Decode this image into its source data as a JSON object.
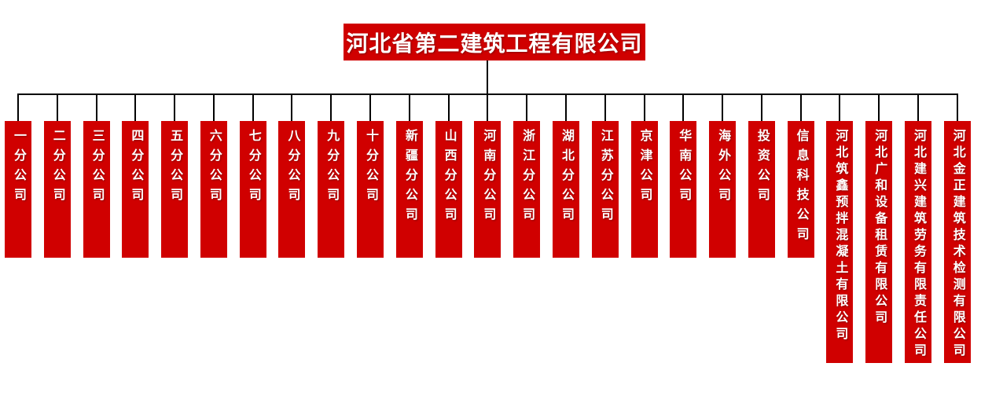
{
  "org_chart": {
    "title": "河北省第二建筑工程有限公司",
    "colors": {
      "node_red": "#d00000",
      "label_white": "#ffffff",
      "connector_black": "#000000",
      "page_background": "#ffffff"
    },
    "companies": [
      {
        "label": "一分公司",
        "tall": false
      },
      {
        "label": "二分公司",
        "tall": false
      },
      {
        "label": "三分公司",
        "tall": false
      },
      {
        "label": "四分公司",
        "tall": false
      },
      {
        "label": "五分公司",
        "tall": false
      },
      {
        "label": "六分公司",
        "tall": false
      },
      {
        "label": "七分公司",
        "tall": false
      },
      {
        "label": "八分公司",
        "tall": false
      },
      {
        "label": "九分公司",
        "tall": false
      },
      {
        "label": "十分公司",
        "tall": false
      },
      {
        "label": "新疆分公司",
        "tall": false
      },
      {
        "label": "山西分公司",
        "tall": false
      },
      {
        "label": "河南分公司",
        "tall": false
      },
      {
        "label": "浙江分公司",
        "tall": false
      },
      {
        "label": "湖北分公司",
        "tall": false
      },
      {
        "label": "江苏分公司",
        "tall": false
      },
      {
        "label": "京津公司",
        "tall": false
      },
      {
        "label": "华南公司",
        "tall": false
      },
      {
        "label": "海外公司",
        "tall": false
      },
      {
        "label": "投资公司",
        "tall": false
      },
      {
        "label": "信息科技公司",
        "tall": false
      },
      {
        "label": "河北筑鑫预拌混凝土有限公司",
        "tall": true
      },
      {
        "label": "河北广和设备租赁有限公司",
        "tall": true
      },
      {
        "label": "河北建兴建筑劳务有限责任公司",
        "tall": true
      },
      {
        "label": "河北金正建筑技术检测有限公司",
        "tall": true
      }
    ]
  }
}
